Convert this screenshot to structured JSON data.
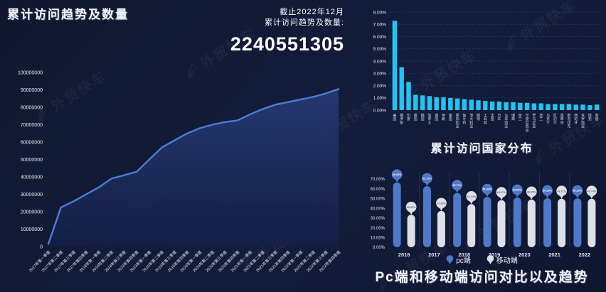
{
  "watermark": "外贸快车",
  "left_panel": {
    "title": "累计访问趋势及数量",
    "asof_line1": "截止2022年12月",
    "asof_line2": "累计访问趋势及数量:",
    "total": "2240551305"
  },
  "colors": {
    "background": "#121b36",
    "trend_line": "#4a7ed8",
    "trend_fill_top": "#263a74",
    "trend_fill_bottom": "#141f47",
    "country_bar": "#1fc6f4",
    "grid_dashed": "#2c3d79",
    "pc_bar": "#4e79c7",
    "mobile_bar": "#dde0e6",
    "group_separator": "#242f52"
  },
  "chart_data": [
    {
      "id": "trend",
      "type": "area",
      "title": "累计访问趋势及数量",
      "x": [
        "2017年第一季度",
        "2017年第二季度",
        "2017年第三季度",
        "2017年第四季度",
        "2018年第一季度",
        "2018年第二季度",
        "2018年第三季度",
        "2018年第四季度",
        "2019年第一季度",
        "2019年第二季度",
        "2019年第三季度",
        "2019年第四季度",
        "2020年第一季度",
        "2020年第二季度",
        "2020年第三季度",
        "2020年第四季度",
        "2021年第一季度",
        "2021年第二季度",
        "2021年第三季度",
        "2021年第四季度",
        "2022年第一季度",
        "2022年第二季度",
        "2022年第三季度",
        "2022年第四季度"
      ],
      "values": [
        1500000,
        22500000,
        26000000,
        30000000,
        34000000,
        39000000,
        41000000,
        43000000,
        50000000,
        57000000,
        61000000,
        65000000,
        68000000,
        70000000,
        71500000,
        72500000,
        76000000,
        79000000,
        81500000,
        83000000,
        84500000,
        86000000,
        88000000,
        90500000
      ],
      "ylim": [
        0,
        100000000
      ],
      "ytick_step": 10000000,
      "grid": false,
      "legend_position": "none"
    },
    {
      "id": "countries",
      "type": "bar",
      "title": "累计访问国家分布",
      "categories": [
        "美国",
        "俄罗斯",
        "印度",
        "英国",
        "韩国",
        "加拿大",
        "德国",
        "伊朗",
        "泰国",
        "保加利亚",
        "匈牙利",
        "澳大利亚",
        "越南",
        "土耳其",
        "法国",
        "日本",
        "马来西亚",
        "瑞典",
        "荷兰",
        "印度尼西亚",
        "罗马尼亚",
        "波兰",
        "乌克兰",
        "尼泊尔",
        "墨西哥",
        "斯洛伐克",
        "西班牙",
        "克罗地亚",
        "捷克",
        "希腊"
      ],
      "values": [
        7.3,
        3.5,
        2.3,
        1.25,
        1.2,
        1.15,
        1.05,
        1.05,
        1.0,
        0.95,
        0.9,
        0.85,
        0.8,
        0.75,
        0.7,
        0.7,
        0.65,
        0.65,
        0.6,
        0.6,
        0.55,
        0.55,
        0.5,
        0.5,
        0.5,
        0.5,
        0.45,
        0.45,
        0.4,
        0.45
      ],
      "unit": "%",
      "ylim": [
        0,
        8
      ],
      "ytick_step": 1,
      "grid": "dashed-horizontal",
      "legend_position": "none"
    },
    {
      "id": "pc_mobile",
      "type": "bar",
      "title": "Pc端和移动端访问对比以及趋势",
      "categories": [
        "2016",
        "2017",
        "2018",
        "2019",
        "2020",
        "2021",
        "2022"
      ],
      "series": [
        {
          "name": "pc端",
          "values": [
            66.65,
            62.72,
            55.77,
            51.63,
            51.05,
            50.29,
            50.26
          ]
        },
        {
          "name": "移动端",
          "values": [
            33.35,
            37.28,
            44.23,
            48.37,
            48.95,
            49.71,
            49.74
          ]
        }
      ],
      "unit": "%",
      "ylim": [
        0,
        70
      ],
      "ytick_step": 10,
      "grid": false,
      "legend_position": "bottom"
    }
  ]
}
